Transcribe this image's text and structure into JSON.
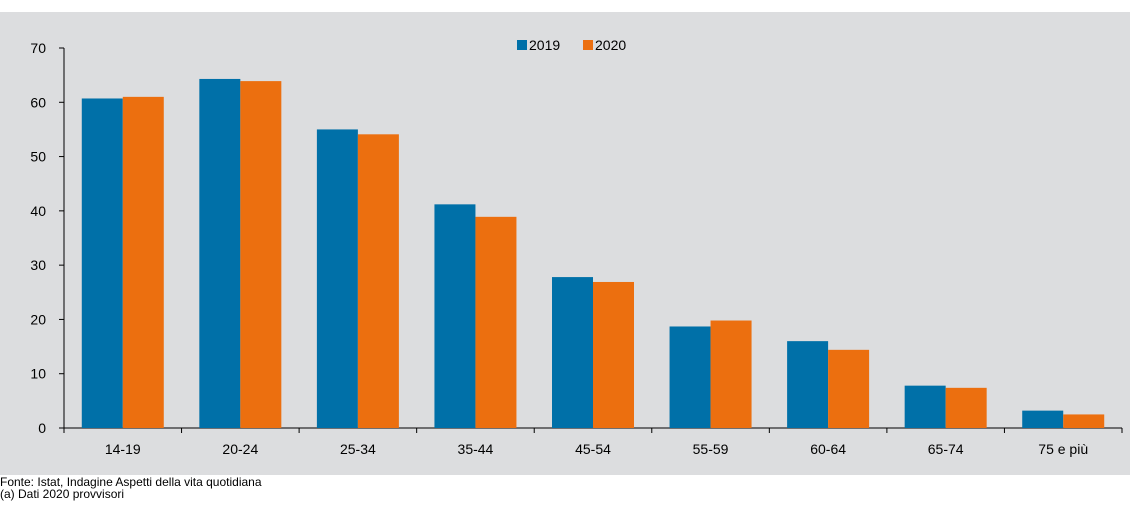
{
  "chart_data": {
    "type": "bar",
    "categories": [
      "14-19",
      "20-24",
      "25-34",
      "35-44",
      "45-54",
      "55-59",
      "60-64",
      "65-74",
      "75 e più"
    ],
    "series": [
      {
        "name": "2019",
        "color": "#0070a8",
        "values": [
          60.7,
          64.3,
          55.0,
          41.2,
          27.8,
          18.7,
          16.0,
          7.8,
          3.2
        ]
      },
      {
        "name": "2020",
        "color": "#ec6f0f",
        "values": [
          61.0,
          63.9,
          54.1,
          38.9,
          26.9,
          19.8,
          14.4,
          7.4,
          2.5
        ]
      }
    ],
    "ylim": [
      0,
      70
    ],
    "yticks": [
      0,
      10,
      20,
      30,
      40,
      50,
      60,
      70
    ],
    "grid": false,
    "legend_position": "top-center",
    "background": "#dcdddf"
  },
  "notes": {
    "source": "Fonte: Istat, Indagine Aspetti della vita quotidiana",
    "footnote": "(a) Dati 2020 provvisori"
  }
}
